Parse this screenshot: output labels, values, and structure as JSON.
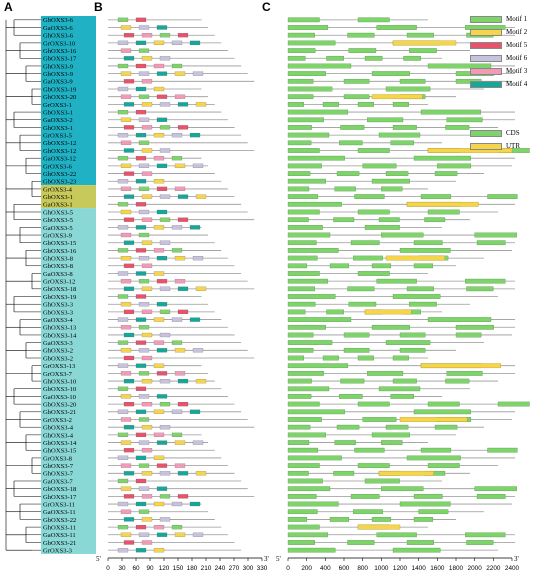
{
  "panels": {
    "a": "A",
    "b": "B",
    "c": "C"
  },
  "genes": [
    {
      "name": "GbOXS3-6",
      "group": 1
    },
    {
      "name": "GaOXS3-6",
      "group": 1
    },
    {
      "name": "GhOXS3-6",
      "group": 1
    },
    {
      "name": "GrOXS3-10",
      "group": 1
    },
    {
      "name": "GhOXS3-16",
      "group": 1
    },
    {
      "name": "GbOXS3-17",
      "group": 1
    },
    {
      "name": "GhOXS3-9",
      "group": 1
    },
    {
      "name": "GbOXS3-9",
      "group": 1
    },
    {
      "name": "GaOXS3-9",
      "group": 1
    },
    {
      "name": "GbOXS3-19",
      "group": 1
    },
    {
      "name": "GhOXS3-20",
      "group": 1
    },
    {
      "name": "GrOXS3-1",
      "group": 1
    },
    {
      "name": "GbOXS3-1",
      "group": 1
    },
    {
      "name": "GaOXS3-2",
      "group": 1
    },
    {
      "name": "GhOXS3-1",
      "group": 1
    },
    {
      "name": "GrOXS3-5",
      "group": 1
    },
    {
      "name": "GbOXS3-12",
      "group": 1
    },
    {
      "name": "GhOXS3-12",
      "group": 1
    },
    {
      "name": "GaOXS3-12",
      "group": 1
    },
    {
      "name": "GrOXS3-6",
      "group": 1
    },
    {
      "name": "GhOXS3-22",
      "group": 1
    },
    {
      "name": "GbOXS3-23",
      "group": 1
    },
    {
      "name": "GrOXS3-4",
      "group": 2
    },
    {
      "name": "GbOXS3-1",
      "group": 2
    },
    {
      "name": "GaOXS3-1",
      "group": 2
    },
    {
      "name": "GhOXS3-5",
      "group": 3
    },
    {
      "name": "GbOXS3-5",
      "group": 3
    },
    {
      "name": "GaOXS3-5",
      "group": 3
    },
    {
      "name": "GrOXS3-9",
      "group": 3
    },
    {
      "name": "GbOXS3-15",
      "group": 3
    },
    {
      "name": "GbOXS3-16",
      "group": 3
    },
    {
      "name": "GhOXS3-8",
      "group": 3
    },
    {
      "name": "GbOXS3-8",
      "group": 3
    },
    {
      "name": "GaOXS3-8",
      "group": 3
    },
    {
      "name": "GrOXS3-12",
      "group": 3
    },
    {
      "name": "GhOXS3-18",
      "group": 3
    },
    {
      "name": "GbOXS3-19",
      "group": 3
    },
    {
      "name": "GhOXS3-3",
      "group": 3
    },
    {
      "name": "GbOXS3-3",
      "group": 3
    },
    {
      "name": "GaOXS3-4",
      "group": 3
    },
    {
      "name": "GhOXS3-13",
      "group": 3
    },
    {
      "name": "GbOXS3-14",
      "group": 3
    },
    {
      "name": "GaOXS3-3",
      "group": 3
    },
    {
      "name": "GhOXS3-2",
      "group": 3
    },
    {
      "name": "GbOXS3-2",
      "group": 3
    },
    {
      "name": "GrOXS3-13",
      "group": 3
    },
    {
      "name": "GrOXS3-7",
      "group": 3
    },
    {
      "name": "GhOXS3-10",
      "group": 3
    },
    {
      "name": "GbOXS3-10",
      "group": 3
    },
    {
      "name": "GaOXS3-10",
      "group": 3
    },
    {
      "name": "GbOXS3-20",
      "group": 3
    },
    {
      "name": "GbOXS3-21",
      "group": 3
    },
    {
      "name": "GrOXS3-2",
      "group": 3
    },
    {
      "name": "GbOXS3-4",
      "group": 3
    },
    {
      "name": "GhOXS3-4",
      "group": 3
    },
    {
      "name": "GbOXS3-14",
      "group": 3
    },
    {
      "name": "GhOXS3-15",
      "group": 3
    },
    {
      "name": "GrOXS3-8",
      "group": 3
    },
    {
      "name": "GbOXS3-7",
      "group": 3
    },
    {
      "name": "GhOXS3-7",
      "group": 3
    },
    {
      "name": "GaOXS3-7",
      "group": 3
    },
    {
      "name": "GbOXS3-18",
      "group": 3
    },
    {
      "name": "GhOXS3-17",
      "group": 3
    },
    {
      "name": "GrOXS3-11",
      "group": 3
    },
    {
      "name": "GaOXS3-11",
      "group": 3
    },
    {
      "name": "GbOXS3-22",
      "group": 3
    },
    {
      "name": "GhOXS3-11",
      "group": 3
    },
    {
      "name": "GaOXS3-11",
      "group": 3
    },
    {
      "name": "GbOXS3-21",
      "group": 3
    },
    {
      "name": "GrOXS3-3",
      "group": 3
    }
  ],
  "group_colors": [
    "#20b2c4",
    "#c7c95a",
    "#8ad8d6"
  ],
  "motif_legend": [
    {
      "label": "Motif 1",
      "color": "#7ed36b"
    },
    {
      "label": "Motif 2",
      "color": "#f6d54a"
    },
    {
      "label": "Motif 5",
      "color": "#e8526a"
    },
    {
      "label": "Motif 6",
      "color": "#c7c2dd"
    },
    {
      "label": "Motif 3",
      "color": "#f39ab6"
    },
    {
      "label": "Motif 4",
      "color": "#15a89a"
    }
  ],
  "structure_legend": [
    {
      "label": "CDS",
      "color": "#7ed36b"
    },
    {
      "label": "UTR",
      "color": "#f6d54a"
    }
  ],
  "axis_b": {
    "start": "5'",
    "end": "3'",
    "ticks": [
      "0",
      "30",
      "60",
      "90",
      "120",
      "150",
      "180",
      "210",
      "240",
      "270",
      "300",
      "330"
    ]
  },
  "axis_c": {
    "start": "5'",
    "end": "3'",
    "ticks": [
      "0",
      "200",
      "400",
      "600",
      "800",
      "1000",
      "1200",
      "1400",
      "1600",
      "1800",
      "2000",
      "2200",
      "2400"
    ]
  }
}
